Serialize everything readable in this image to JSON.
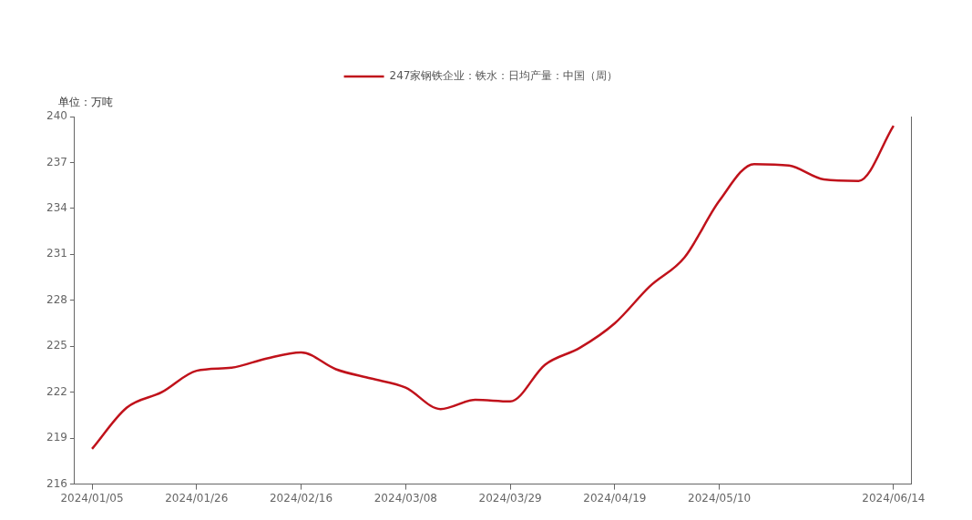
{
  "chart_data": {
    "type": "line",
    "ylabel": "单位：万吨",
    "categories": [
      "2024/01/05",
      null,
      null,
      "2024/01/26",
      null,
      null,
      "2024/02/16",
      null,
      null,
      "2024/03/08",
      null,
      null,
      "2024/03/29",
      null,
      null,
      "2024/04/19",
      null,
      null,
      "2024/05/10",
      null,
      null,
      null,
      null,
      "2024/06/14"
    ],
    "series": [
      {
        "name": "247家钢铁企业：铁水：日均产量：中国（周）",
        "color": "#c0121b",
        "values": [
          218.3,
          221.0,
          222.0,
          223.4,
          223.6,
          224.2,
          224.6,
          223.5,
          222.9,
          222.3,
          220.9,
          221.5,
          221.4,
          223.8,
          224.9,
          226.5,
          228.9,
          230.8,
          234.5,
          236.9,
          236.8,
          235.9,
          235.8,
          239.4
        ]
      }
    ],
    "ylim": [
      216,
      240
    ],
    "yticks": [
      216,
      219,
      222,
      225,
      228,
      231,
      234,
      237,
      240
    ],
    "grid": false,
    "legend": "top",
    "marker": "none",
    "line_style": "solid"
  }
}
